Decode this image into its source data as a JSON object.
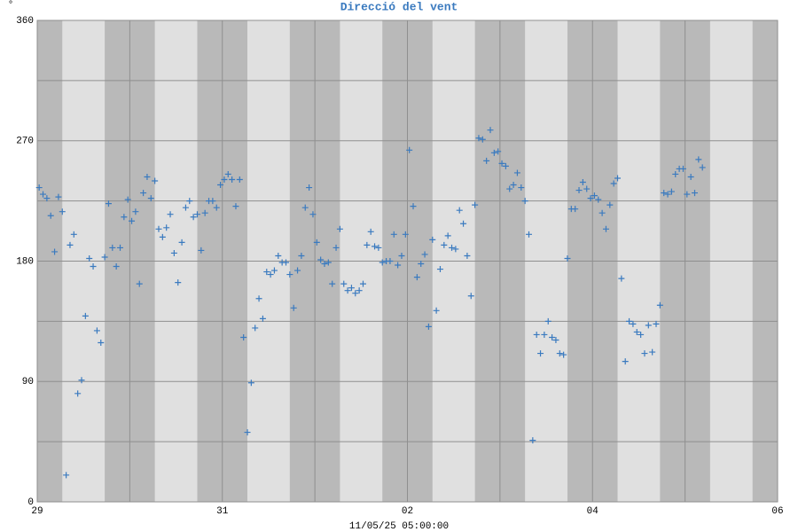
{
  "chart_data": {
    "type": "scatter",
    "title": "Direcció del vent",
    "y_unit": "°",
    "caption": "11/05/25 05:00:00",
    "color": "#3a7abf",
    "grid": true,
    "xlim": [
      0,
      192
    ],
    "xticks": [
      {
        "value": 0,
        "label": "29"
      },
      {
        "value": 48,
        "label": "31"
      },
      {
        "value": 96,
        "label": "02"
      },
      {
        "value": 144,
        "label": "04"
      },
      {
        "value": 192,
        "label": "06"
      }
    ],
    "minor_xticks": [
      24,
      72,
      120,
      168
    ],
    "ylim": [
      0,
      360
    ],
    "yticks": [
      0,
      90,
      180,
      270,
      360
    ],
    "minor_yticks": [
      45,
      135,
      225,
      315
    ],
    "x": [
      0.5,
      1.5,
      2.5,
      3.5,
      4.5,
      5.5,
      6.5,
      7.5,
      8.5,
      9.5,
      10.5,
      11.5,
      12.5,
      13.5,
      14.5,
      15.5,
      16.5,
      17.5,
      18.5,
      19.5,
      20.5,
      21.5,
      22.5,
      23.5,
      24.5,
      25.5,
      26.5,
      27.5,
      28.5,
      29.5,
      30.5,
      31.5,
      32.5,
      33.5,
      34.5,
      35.5,
      36.5,
      37.5,
      38.5,
      39.5,
      40.5,
      41.5,
      42.5,
      43.5,
      44.5,
      45.5,
      46.5,
      47.5,
      48.5,
      49.5,
      50.5,
      51.5,
      52.5,
      53.5,
      54.5,
      55.5,
      56.5,
      57.5,
      58.5,
      59.5,
      60.5,
      61.5,
      62.5,
      63.5,
      64.5,
      65.5,
      66.5,
      67.5,
      68.5,
      69.5,
      70.5,
      71.5,
      72.5,
      73.5,
      74.5,
      75.5,
      76.5,
      77.5,
      78.5,
      79.5,
      80.5,
      81.5,
      82.5,
      83.5,
      84.5,
      85.5,
      86.5,
      87.5,
      88.5,
      89.5,
      90.5,
      91.5,
      92.5,
      93.5,
      94.5,
      95.5,
      96.5,
      97.5,
      98.5,
      99.5,
      100.5,
      101.5,
      102.5,
      103.5,
      104.5,
      105.5,
      106.5,
      107.5,
      108.5,
      109.5,
      110.5,
      111.5,
      112.5,
      113.5,
      114.5,
      115.5,
      116.5,
      117.5,
      118.5,
      119.5,
      120.5,
      121.5,
      122.5,
      123.5,
      124.5,
      125.5,
      126.5,
      127.5,
      128.5,
      129.5,
      130.5,
      131.5,
      132.5,
      133.5,
      134.5,
      135.5,
      136.5,
      137.5,
      138.5,
      139.5,
      140.5,
      141.5,
      142.5,
      143.5,
      144.5,
      145.5,
      146.5,
      147.5,
      148.5,
      149.5,
      150.5,
      151.5,
      152.5,
      153.5,
      154.5,
      155.5,
      156.5,
      157.5,
      158.5,
      159.5,
      160.5,
      161.5,
      162.5,
      163.5,
      164.5,
      165.5,
      166.5,
      167.5,
      168.5,
      169.5,
      170.5,
      171.5,
      172.5
    ],
    "values": [
      235,
      230,
      227,
      214,
      187,
      228,
      217,
      20,
      192,
      200,
      81,
      91,
      139,
      182,
      176,
      128,
      119,
      183,
      223,
      190,
      176,
      190,
      213,
      226,
      210,
      217,
      163,
      231,
      243,
      227,
      240,
      204,
      198,
      205,
      215,
      186,
      164,
      194,
      220,
      225,
      213,
      215,
      188,
      216,
      225,
      225,
      220,
      237,
      241,
      245,
      241,
      221,
      241,
      123,
      52,
      89,
      130,
      152,
      137,
      172,
      170,
      173,
      184,
      179,
      179,
      170,
      145,
      173,
      184,
      220,
      235,
      215,
      194,
      181,
      178,
      179,
      163,
      190,
      204,
      163,
      158,
      160,
      156,
      158,
      163,
      192,
      202,
      191,
      190,
      179,
      180,
      180,
      200,
      177,
      184,
      200,
      263,
      221,
      168,
      178,
      185,
      131,
      196,
      143,
      174,
      192,
      199,
      190,
      189,
      218,
      208,
      184,
      154,
      222,
      272,
      271,
      255,
      278,
      261,
      262,
      253,
      251,
      234,
      237,
      246,
      235,
      225,
      200,
      46,
      125,
      111,
      125,
      135,
      123,
      121,
      111,
      110,
      182,
      219,
      219,
      233,
      239,
      234,
      227,
      229,
      226,
      216,
      204,
      222,
      238,
      242,
      167,
      105,
      135,
      133,
      127,
      125,
      111,
      132,
      112,
      133,
      147,
      231,
      230,
      232,
      245,
      249,
      249,
      230,
      243,
      231,
      256,
      250
    ]
  }
}
